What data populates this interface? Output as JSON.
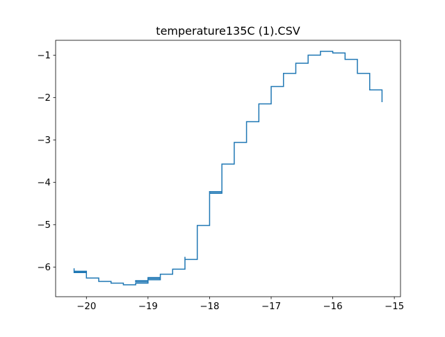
{
  "chart_data": {
    "type": "line",
    "title": "temperature135C (1).CSV",
    "xlabel": "",
    "ylabel": "",
    "xlim": [
      -20.5,
      -14.9
    ],
    "ylim": [
      -6.7,
      -0.65
    ],
    "x_ticks": [
      -20,
      -19,
      -18,
      -17,
      -16,
      -15
    ],
    "x_tick_labels": [
      "−20",
      "−19",
      "−18",
      "−17",
      "−16",
      "−15"
    ],
    "y_ticks": [
      -6,
      -5,
      -4,
      -3,
      -2,
      -1
    ],
    "y_tick_labels": [
      "−6",
      "−5",
      "−4",
      "−3",
      "−2",
      "−1"
    ],
    "grid": false,
    "legend": "none",
    "series": [
      {
        "color": "#1f77b4",
        "points": [
          [
            -20.2,
            -6.03
          ],
          [
            -20.2,
            -6.13
          ],
          [
            -20.0,
            -6.13
          ],
          [
            -20.0,
            -6.1
          ],
          [
            -20.2,
            -6.1
          ],
          [
            -20.2,
            -6.12
          ],
          [
            -20.0,
            -6.12
          ],
          [
            -20.0,
            -6.26
          ],
          [
            -19.8,
            -6.26
          ],
          [
            -19.8,
            -6.34
          ],
          [
            -19.6,
            -6.34
          ],
          [
            -19.6,
            -6.38
          ],
          [
            -19.4,
            -6.38
          ],
          [
            -19.4,
            -6.42
          ],
          [
            -19.2,
            -6.42
          ],
          [
            -19.2,
            -6.38
          ],
          [
            -19.0,
            -6.38
          ],
          [
            -19.0,
            -6.32
          ],
          [
            -19.2,
            -6.32
          ],
          [
            -19.2,
            -6.35
          ],
          [
            -19.0,
            -6.35
          ],
          [
            -19.0,
            -6.27
          ],
          [
            -18.8,
            -6.27
          ],
          [
            -18.8,
            -6.3
          ],
          [
            -19.0,
            -6.3
          ],
          [
            -19.0,
            -6.25
          ],
          [
            -18.8,
            -6.25
          ],
          [
            -18.8,
            -6.17
          ],
          [
            -18.6,
            -6.17
          ],
          [
            -18.6,
            -6.05
          ],
          [
            -18.4,
            -6.05
          ],
          [
            -18.4,
            -5.76
          ],
          [
            -18.4,
            -5.82
          ],
          [
            -18.2,
            -5.82
          ],
          [
            -18.2,
            -5.02
          ],
          [
            -18.0,
            -5.02
          ],
          [
            -18.0,
            -4.25
          ],
          [
            -17.8,
            -4.25
          ],
          [
            -17.8,
            -4.22
          ],
          [
            -18.0,
            -4.22
          ],
          [
            -18.0,
            -4.26
          ],
          [
            -17.8,
            -4.26
          ],
          [
            -17.8,
            -3.57
          ],
          [
            -17.6,
            -3.57
          ],
          [
            -17.6,
            -3.06
          ],
          [
            -17.4,
            -3.06
          ],
          [
            -17.4,
            -2.57
          ],
          [
            -17.2,
            -2.57
          ],
          [
            -17.2,
            -2.15
          ],
          [
            -17.0,
            -2.15
          ],
          [
            -17.0,
            -1.74
          ],
          [
            -16.8,
            -1.74
          ],
          [
            -16.8,
            -1.43
          ],
          [
            -16.6,
            -1.43
          ],
          [
            -16.6,
            -1.19
          ],
          [
            -16.4,
            -1.19
          ],
          [
            -16.4,
            -1.0
          ],
          [
            -16.2,
            -1.0
          ],
          [
            -16.2,
            -0.91
          ],
          [
            -16.0,
            -0.91
          ],
          [
            -16.0,
            -0.95
          ],
          [
            -15.8,
            -0.95
          ],
          [
            -15.8,
            -1.1
          ],
          [
            -15.6,
            -1.1
          ],
          [
            -15.6,
            -1.43
          ],
          [
            -15.4,
            -1.43
          ],
          [
            -15.4,
            -1.82
          ],
          [
            -15.2,
            -1.82
          ],
          [
            -15.2,
            -2.11
          ]
        ]
      }
    ]
  }
}
